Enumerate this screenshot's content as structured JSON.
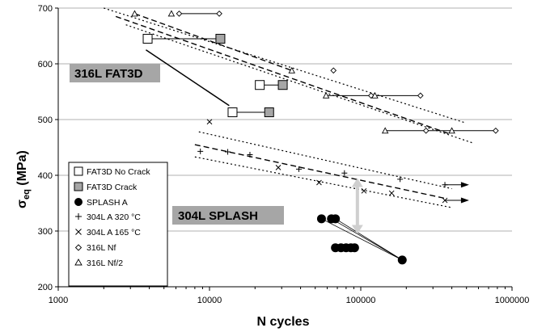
{
  "chart_data": {
    "type": "scatter",
    "xscale": "log",
    "xlim": [
      1000,
      1000000
    ],
    "ylim": [
      200,
      700
    ],
    "xlabel": "N  cycles",
    "ylabel_main": "σ",
    "ylabel_sub": "eq",
    "ylabel_unit": "(MPa)",
    "x_ticks": [
      1000,
      10000,
      100000,
      1000000
    ],
    "x_tick_labels": [
      "1000",
      "10000",
      "100000",
      "1000000"
    ],
    "y_ticks": [
      200,
      300,
      400,
      500,
      600,
      700
    ],
    "y_tick_labels": [
      "200",
      "300",
      "400",
      "500",
      "600",
      "700"
    ],
    "grid": "horizontal",
    "legend_position": "bottom-left",
    "annotations": [
      {
        "text": "316L FAT3D",
        "x": 1500,
        "y": 625
      },
      {
        "text": "304L SPLASH",
        "x": 9000,
        "y": 330
      }
    ],
    "series": [
      {
        "name": "FAT3D No Crack",
        "marker": "open-square",
        "points": [
          [
            3900,
            645
          ],
          [
            14200,
            513
          ],
          [
            21500,
            562
          ]
        ]
      },
      {
        "name": "FAT3D Crack",
        "marker": "gray-square",
        "points": [
          [
            11800,
            645
          ],
          [
            24800,
            513
          ],
          [
            30500,
            562
          ]
        ]
      },
      {
        "name": "SPLASH A",
        "marker": "filled-circle",
        "points": [
          [
            55000,
            322
          ],
          [
            64000,
            322
          ],
          [
            68000,
            322
          ],
          [
            68000,
            270
          ],
          [
            74000,
            270
          ],
          [
            80000,
            270
          ],
          [
            86000,
            270
          ],
          [
            91000,
            270
          ],
          [
            188000,
            248
          ]
        ]
      },
      {
        "name": "304L A 320 °C",
        "marker": "plus",
        "points": [
          [
            8700,
            443
          ],
          [
            13200,
            442
          ],
          [
            18500,
            437
          ],
          [
            39000,
            411
          ],
          [
            78000,
            404
          ],
          [
            182000,
            393
          ],
          [
            360000,
            383
          ]
        ]
      },
      {
        "name": "304L A 165 °C",
        "marker": "x",
        "points": [
          [
            10000,
            496
          ],
          [
            28500,
            414
          ],
          [
            53000,
            387
          ],
          [
            105000,
            372
          ],
          [
            160000,
            368
          ],
          [
            360000,
            355
          ]
        ]
      },
      {
        "name": "316L Nf",
        "marker": "diamond",
        "points": [
          [
            6300,
            690
          ],
          [
            11600,
            690
          ],
          [
            66000,
            588
          ],
          [
            117000,
            543
          ],
          [
            248000,
            543
          ],
          [
            270000,
            480
          ],
          [
            780000,
            480
          ]
        ]
      },
      {
        "name": "316L Nf/2",
        "marker": "triangle",
        "points": [
          [
            3200,
            690
          ],
          [
            5600,
            690
          ],
          [
            35000,
            588
          ],
          [
            59000,
            543
          ],
          [
            124000,
            543
          ],
          [
            145000,
            480
          ],
          [
            400000,
            480
          ]
        ]
      }
    ],
    "run_out_arrows": [
      {
        "from": [
          360000,
          383
        ],
        "to": [
          520000,
          383
        ]
      },
      {
        "from": [
          360000,
          355
        ],
        "to": [
          520000,
          355
        ]
      }
    ],
    "range_segments": [
      {
        "from": [
          3900,
          645
        ],
        "to": [
          11800,
          645
        ]
      },
      {
        "from": [
          14200,
          513
        ],
        "to": [
          24800,
          513
        ]
      },
      {
        "from": [
          21500,
          562
        ],
        "to": [
          30500,
          562
        ]
      },
      {
        "from": [
          6300,
          690
        ],
        "to": [
          11600,
          690
        ]
      },
      {
        "from": [
          59000,
          543
        ],
        "to": [
          248000,
          543
        ]
      },
      {
        "from": [
          145000,
          480
        ],
        "to": [
          780000,
          480
        ]
      }
    ],
    "trend_lines": [
      {
        "style": "dash",
        "from": [
          2400,
          685
        ],
        "to": [
          380000,
          475
        ]
      },
      {
        "style": "dot",
        "from": [
          2000,
          700
        ],
        "to": [
          480000,
          495
        ]
      },
      {
        "style": "dot",
        "from": [
          2800,
          670
        ],
        "to": [
          550000,
          458
        ]
      },
      {
        "style": "solid",
        "from": [
          3800,
          625
        ],
        "to": [
          13500,
          525
        ]
      },
      {
        "style": "dash",
        "from": [
          3200,
          690
        ],
        "to": [
          35000,
          588
        ]
      },
      {
        "style": "dash",
        "from": [
          8000,
          455
        ],
        "to": [
          370000,
          358
        ]
      },
      {
        "style": "dot",
        "from": [
          8500,
          478
        ],
        "to": [
          400000,
          376
        ]
      },
      {
        "style": "dot",
        "from": [
          8000,
          433
        ],
        "to": [
          400000,
          342
        ]
      },
      {
        "style": "thin",
        "from": [
          55000,
          322
        ],
        "to": [
          188000,
          248
        ]
      },
      {
        "style": "thin",
        "from": [
          64000,
          322
        ],
        "to": [
          188000,
          248
        ]
      },
      {
        "style": "thin",
        "from": [
          68000,
          322
        ],
        "to": [
          188000,
          248
        ]
      }
    ],
    "double_arrow": {
      "x": 95000,
      "y_from": 395,
      "y_to": 295
    }
  },
  "legend": [
    {
      "label": "FAT3D No Crack",
      "marker": "open-square"
    },
    {
      "label": "FAT3D Crack",
      "marker": "gray-square"
    },
    {
      "label": "SPLASH A",
      "marker": "filled-circle"
    },
    {
      "label": "304L A 320 °C",
      "marker": "plus"
    },
    {
      "label": "304L A 165 °C",
      "marker": "x"
    },
    {
      "label": "316L Nf",
      "marker": "diamond"
    },
    {
      "label": "316L Nf/2",
      "marker": "triangle"
    }
  ],
  "colors": {
    "grid": "#b0b0b0",
    "label_box": "#a6a6a6",
    "gray_marker": "#a6a6a6",
    "double_arrow": "#cfcfcf"
  }
}
